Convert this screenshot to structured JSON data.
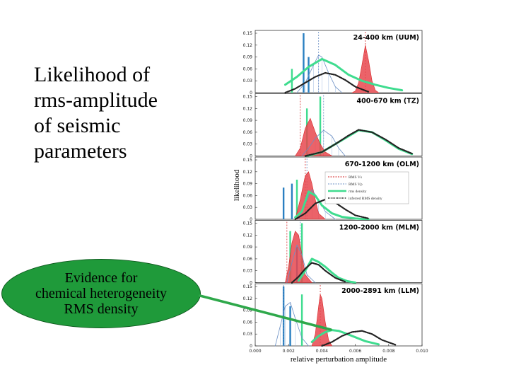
{
  "slide": {
    "title_lines": [
      "Likelihood of",
      "rms-amplitude",
      "of seismic",
      "parameters"
    ],
    "callout_lines": [
      "Evidence for",
      "chemical heterogeneity",
      "RMS density"
    ],
    "colors": {
      "callout_fill": "#1f9a3a",
      "arrow": "#2ea84a"
    }
  },
  "chart_data": {
    "type": "line",
    "xlabel": "relative perturbation amplitude",
    "ylabel": "likelihood",
    "xlim": [
      0.0,
      0.01
    ],
    "xticks": [
      "0.000",
      "0.002",
      "0.004",
      "0.006",
      "0.008",
      "0.010"
    ],
    "ylim": [
      0,
      0.15
    ],
    "yticks": [
      "0",
      "0.03",
      "0.06",
      "0.09",
      "0.12",
      "0.15"
    ],
    "legend": {
      "placement": "panel 3, right",
      "entries": [
        {
          "label": "RMS Vs",
          "color": "#d62728",
          "style": "dashed"
        },
        {
          "label": "RMS Vp",
          "color": "#6a8fc4",
          "style": "dashed"
        },
        {
          "label": "rms density",
          "color": "#3fdc8f",
          "style": "solid"
        },
        {
          "label": "inferred RMS density",
          "color": "#222222",
          "style": "dotted"
        }
      ]
    },
    "panels": [
      {
        "label": "24-400 km (UUM)",
        "bars": [
          {
            "x": 0.0022,
            "h": 0.06,
            "color": "#3fdc8f"
          },
          {
            "x": 0.0029,
            "h": 0.15,
            "color": "#2a7fc1"
          },
          {
            "x": 0.0032,
            "h": 0.09,
            "color": "#2a7fc1"
          }
        ],
        "vlines": [
          {
            "x": 0.0066,
            "color": "#d62728"
          },
          {
            "x": 0.0038,
            "color": "#6a8fc4"
          }
        ],
        "series": [
          {
            "name": "RMS Vs",
            "kind": "fill",
            "x": [
              0.0058,
              0.006,
              0.0062,
              0.0064,
              0.0066,
              0.0068,
              0.007,
              0.0072,
              0.0074
            ],
            "y": [
              0,
              0.004,
              0.025,
              0.07,
              0.12,
              0.08,
              0.03,
              0.006,
              0
            ]
          },
          {
            "name": "RMS Vp",
            "kind": "line",
            "x": [
              0.0025,
              0.003,
              0.0035,
              0.0038,
              0.004,
              0.0044,
              0.0048,
              0.0052
            ],
            "y": [
              0,
              0.025,
              0.07,
              0.095,
              0.09,
              0.05,
              0.015,
              0
            ]
          },
          {
            "name": "rms density",
            "kind": "line",
            "x": [
              0.0018,
              0.0025,
              0.0032,
              0.004,
              0.0048,
              0.0056,
              0.0064,
              0.0072,
              0.008,
              0.0088
            ],
            "y": [
              0.02,
              0.04,
              0.065,
              0.085,
              0.07,
              0.045,
              0.03,
              0.02,
              0.012,
              0.006
            ]
          },
          {
            "name": "inferred RMS density",
            "kind": "line",
            "x": [
              0.0018,
              0.0024,
              0.003,
              0.0036,
              0.0042,
              0.0048,
              0.0054,
              0.006,
              0.0068
            ],
            "y": [
              0,
              0.01,
              0.025,
              0.04,
              0.05,
              0.045,
              0.032,
              0.015,
              0.002
            ]
          }
        ]
      },
      {
        "label": "400-670 km (TZ)",
        "bars": [
          {
            "x": 0.0031,
            "h": 0.12,
            "color": "#3fdc8f"
          },
          {
            "x": 0.0039,
            "h": 0.15,
            "color": "#3fdc8f"
          }
        ],
        "vlines": [
          {
            "x": 0.0027,
            "color": "#d62728"
          },
          {
            "x": 0.0041,
            "color": "#6a8fc4"
          }
        ],
        "series": [
          {
            "name": "RMS Vs",
            "kind": "fill",
            "x": [
              0.0024,
              0.0027,
              0.003,
              0.0033,
              0.0036,
              0.0039,
              0.0042,
              0.0046
            ],
            "y": [
              0,
              0.02,
              0.07,
              0.095,
              0.06,
              0.03,
              0.01,
              0
            ]
          },
          {
            "name": "RMS Vp",
            "kind": "line",
            "x": [
              0.0028,
              0.0032,
              0.0036,
              0.0041,
              0.0046,
              0.005,
              0.0054
            ],
            "y": [
              0,
              0.02,
              0.045,
              0.065,
              0.05,
              0.02,
              0
            ]
          },
          {
            "name": "rms density",
            "kind": "line",
            "x": [
              0.0031,
              0.004,
              0.0048,
              0.0056,
              0.0062,
              0.007,
              0.0078,
              0.0086,
              0.0094
            ],
            "y": [
              0,
              0.01,
              0.03,
              0.05,
              0.065,
              0.06,
              0.04,
              0.018,
              0.005
            ]
          },
          {
            "name": "inferred RMS density",
            "kind": "line",
            "x": [
              0.003,
              0.004,
              0.0048,
              0.0056,
              0.0062,
              0.007,
              0.0078,
              0.0086,
              0.0094
            ],
            "y": [
              0,
              0.01,
              0.03,
              0.052,
              0.066,
              0.06,
              0.042,
              0.02,
              0.006
            ]
          }
        ]
      },
      {
        "label": "670-1200 km (OLM)",
        "bars": [
          {
            "x": 0.0017,
            "h": 0.08,
            "color": "#2a7fc1"
          },
          {
            "x": 0.0022,
            "h": 0.09,
            "color": "#2a7fc1"
          },
          {
            "x": 0.0025,
            "h": 0.1,
            "color": "#3fdc8f"
          }
        ],
        "vlines": [
          {
            "x": 0.003,
            "color": "#d62728"
          },
          {
            "x": 0.0031,
            "color": "#6a8fc4"
          }
        ],
        "series": [
          {
            "name": "RMS Vs",
            "kind": "fill",
            "x": [
              0.0024,
              0.0027,
              0.003,
              0.0032,
              0.0034,
              0.0036,
              0.0038,
              0.0042
            ],
            "y": [
              0,
              0.05,
              0.11,
              0.12,
              0.09,
              0.05,
              0.015,
              0
            ]
          },
          {
            "name": "RMS Vp",
            "kind": "line",
            "x": [
              0.0026,
              0.003,
              0.0034,
              0.0038,
              0.0042,
              0.0048
            ],
            "y": [
              0,
              0.04,
              0.075,
              0.05,
              0.02,
              0
            ]
          },
          {
            "name": "rms density",
            "kind": "line",
            "x": [
              0.0024,
              0.0028,
              0.0032,
              0.0036,
              0.004,
              0.0046,
              0.0052,
              0.006,
              0.0068
            ],
            "y": [
              0.005,
              0.02,
              0.07,
              0.06,
              0.035,
              0.015,
              0.006,
              0.002,
              0
            ]
          },
          {
            "name": "inferred RMS density",
            "kind": "line",
            "x": [
              0.0024,
              0.003,
              0.0036,
              0.0042,
              0.0048,
              0.0054,
              0.006,
              0.0068
            ],
            "y": [
              0,
              0.015,
              0.04,
              0.05,
              0.042,
              0.025,
              0.01,
              0.002
            ]
          }
        ]
      },
      {
        "label": "1200-2000 km (MLM)",
        "bars": [
          {
            "x": 0.0021,
            "h": 0.13,
            "color": "#3fdc8f"
          },
          {
            "x": 0.0025,
            "h": 0.09,
            "color": "#2a7fc1"
          },
          {
            "x": 0.0028,
            "h": 0.15,
            "color": "#3fdc8f"
          }
        ],
        "vlines": [
          {
            "x": 0.0019,
            "color": "#d62728"
          },
          {
            "x": 0.0027,
            "color": "#6a8fc4"
          }
        ],
        "series": [
          {
            "name": "RMS Vs",
            "kind": "fill",
            "x": [
              0.0018,
              0.002,
              0.0022,
              0.0024,
              0.0026,
              0.0028,
              0.003,
              0.0034
            ],
            "y": [
              0,
              0.04,
              0.1,
              0.13,
              0.12,
              0.07,
              0.02,
              0
            ]
          },
          {
            "name": "RMS Vp",
            "kind": "line",
            "x": [
              0.0019,
              0.0022,
              0.0025,
              0.0028,
              0.0031,
              0.0036
            ],
            "y": [
              0,
              0.05,
              0.095,
              0.07,
              0.02,
              0
            ]
          },
          {
            "name": "rms density",
            "kind": "line",
            "x": [
              0.0026,
              0.003,
              0.0034,
              0.0038,
              0.0042,
              0.0046,
              0.005,
              0.0055,
              0.006
            ],
            "y": [
              0.005,
              0.03,
              0.06,
              0.052,
              0.04,
              0.025,
              0.012,
              0.004,
              0
            ]
          },
          {
            "name": "inferred RMS density",
            "kind": "line",
            "x": [
              0.0022,
              0.0026,
              0.003,
              0.0034,
              0.0038,
              0.0042,
              0.0048,
              0.0054
            ],
            "y": [
              0,
              0.015,
              0.035,
              0.05,
              0.045,
              0.03,
              0.012,
              0.002
            ]
          }
        ]
      },
      {
        "label": "2000-2891 km (LLM)",
        "bars": [
          {
            "x": 0.0017,
            "h": 0.15,
            "color": "#2a7fc1"
          },
          {
            "x": 0.0021,
            "h": 0.1,
            "color": "#2a7fc1"
          },
          {
            "x": 0.0028,
            "h": 0.13,
            "color": "#3fdc8f"
          }
        ],
        "vlines": [
          {
            "x": 0.0039,
            "color": "#d62728"
          },
          {
            "x": 0.0017,
            "color": "#6a8fc4"
          }
        ],
        "series": [
          {
            "name": "RMS Vs",
            "kind": "fill",
            "x": [
              0.0034,
              0.0036,
              0.0038,
              0.0039,
              0.004,
              0.0042,
              0.0044,
              0.0046
            ],
            "y": [
              0,
              0.03,
              0.1,
              0.13,
              0.12,
              0.06,
              0.015,
              0
            ]
          },
          {
            "name": "RMS Vp",
            "kind": "line",
            "x": [
              0.0012,
              0.0015,
              0.0018,
              0.0021,
              0.0024,
              0.0028,
              0.0032
            ],
            "y": [
              0,
              0.05,
              0.1,
              0.11,
              0.07,
              0.02,
              0
            ]
          },
          {
            "name": "rms density",
            "kind": "line",
            "x": [
              0.0034,
              0.0038,
              0.0042,
              0.0046,
              0.005,
              0.0054,
              0.006,
              0.0066,
              0.0074
            ],
            "y": [
              0.01,
              0.025,
              0.035,
              0.04,
              0.038,
              0.032,
              0.022,
              0.012,
              0.004
            ]
          },
          {
            "name": "inferred RMS density",
            "kind": "line",
            "x": [
              0.004,
              0.0046,
              0.0052,
              0.0058,
              0.0064,
              0.007,
              0.0076,
              0.0084
            ],
            "y": [
              0,
              0.01,
              0.025,
              0.035,
              0.038,
              0.03,
              0.015,
              0.003
            ]
          }
        ]
      }
    ]
  }
}
